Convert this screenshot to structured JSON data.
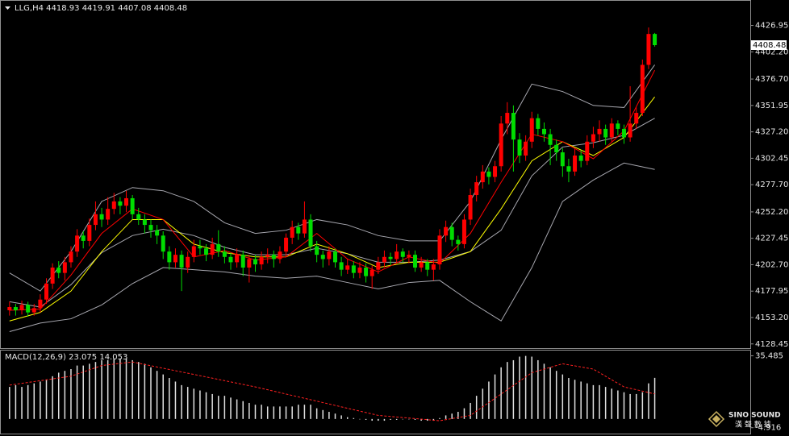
{
  "chart_data": [
    {
      "type": "candlestick",
      "title": "LLG,H4",
      "up_color": "#ff0000",
      "down_color": "#00dd00",
      "ylim": [
        4126,
        4447
      ],
      "yticks": [
        4426.95,
        {
          "value": 4402.2,
          "label": "4402.20"
        },
        {
          "value": 4376.7,
          "label": "4376.70"
        },
        4351.95,
        {
          "value": 4327.2,
          "label": "4327.20"
        },
        4302.45,
        {
          "value": 4277.7,
          "label": "4277.70"
        },
        {
          "value": 4252.2,
          "label": "4252.20"
        },
        4227.45,
        {
          "value": 4202.7,
          "label": "4202.70"
        },
        4177.95,
        {
          "value": 4153.2,
          "label": "4153.20"
        },
        4128.45
      ],
      "ohlc": [
        [
          4160,
          4168,
          4155,
          4163
        ],
        [
          4163,
          4166,
          4155,
          4160
        ],
        [
          4160,
          4169,
          4156,
          4165
        ],
        [
          4165,
          4168,
          4154,
          4158
        ],
        [
          4158,
          4166,
          4155,
          4162
        ],
        [
          4162,
          4175,
          4158,
          4170
        ],
        [
          4170,
          4190,
          4166,
          4185
        ],
        [
          4185,
          4204,
          4180,
          4200
        ],
        [
          4200,
          4206,
          4190,
          4195
        ],
        [
          4195,
          4210,
          4188,
          4205
        ],
        [
          4205,
          4220,
          4200,
          4215
        ],
        [
          4215,
          4236,
          4210,
          4230
        ],
        [
          4230,
          4234,
          4218,
          4225
        ],
        [
          4225,
          4246,
          4220,
          4240
        ],
        [
          4240,
          4262,
          4235,
          4250
        ],
        [
          4250,
          4256,
          4238,
          4245
        ],
        [
          4245,
          4266,
          4240,
          4255
        ],
        [
          4255,
          4270,
          4250,
          4262
        ],
        [
          4262,
          4266,
          4250,
          4258
        ],
        [
          4258,
          4272,
          4252,
          4265
        ],
        [
          4265,
          4268,
          4245,
          4250
        ],
        [
          4250,
          4256,
          4240,
          4245
        ],
        [
          4245,
          4250,
          4232,
          4240
        ],
        [
          4240,
          4245,
          4228,
          4235
        ],
        [
          4235,
          4240,
          4222,
          4230
        ],
        [
          4230,
          4234,
          4208,
          4215
        ],
        [
          4215,
          4220,
          4198,
          4205
        ],
        [
          4205,
          4218,
          4200,
          4212
        ],
        [
          4212,
          4216,
          4178,
          4200
        ],
        [
          4200,
          4215,
          4195,
          4210
        ],
        [
          4210,
          4226,
          4205,
          4220
        ],
        [
          4220,
          4226,
          4212,
          4218
        ],
        [
          4218,
          4222,
          4206,
          4212
        ],
        [
          4212,
          4228,
          4208,
          4222
        ],
        [
          4222,
          4235,
          4210,
          4215
        ],
        [
          4215,
          4220,
          4204,
          4210
        ],
        [
          4210,
          4214,
          4198,
          4205
        ],
        [
          4205,
          4218,
          4200,
          4212
        ],
        [
          4212,
          4216,
          4192,
          4200
        ],
        [
          4200,
          4212,
          4186,
          4208
        ],
        [
          4208,
          4212,
          4196,
          4203
        ],
        [
          4203,
          4215,
          4198,
          4210
        ],
        [
          4210,
          4218,
          4204,
          4212
        ],
        [
          4212,
          4216,
          4200,
          4208
        ],
        [
          4208,
          4220,
          4204,
          4215
        ],
        [
          4215,
          4232,
          4210,
          4228
        ],
        [
          4228,
          4244,
          4222,
          4238
        ],
        [
          4238,
          4242,
          4226,
          4232
        ],
        [
          4232,
          4262,
          4228,
          4245
        ],
        [
          4245,
          4250,
          4215,
          4220
        ],
        [
          4220,
          4225,
          4205,
          4212
        ],
        [
          4212,
          4216,
          4200,
          4208
        ],
        [
          4208,
          4220,
          4202,
          4215
        ],
        [
          4215,
          4218,
          4200,
          4205
        ],
        [
          4205,
          4210,
          4192,
          4198
        ],
        [
          4198,
          4208,
          4194,
          4202
        ],
        [
          4202,
          4206,
          4190,
          4195
        ],
        [
          4195,
          4205,
          4190,
          4200
        ],
        [
          4200,
          4204,
          4186,
          4192
        ],
        [
          4192,
          4202,
          4180,
          4198
        ],
        [
          4198,
          4210,
          4194,
          4205
        ],
        [
          4205,
          4216,
          4200,
          4210
        ],
        [
          4210,
          4214,
          4202,
          4208
        ],
        [
          4208,
          4222,
          4204,
          4215
        ],
        [
          4215,
          4218,
          4205,
          4210
        ],
        [
          4210,
          4216,
          4204,
          4212
        ],
        [
          4212,
          4216,
          4196,
          4200
        ],
        [
          4200,
          4210,
          4196,
          4205
        ],
        [
          4205,
          4208,
          4192,
          4198
        ],
        [
          4198,
          4208,
          4188,
          4203
        ],
        [
          4203,
          4236,
          4198,
          4230
        ],
        [
          4230,
          4244,
          4224,
          4238
        ],
        [
          4238,
          4242,
          4220,
          4226
        ],
        [
          4226,
          4230,
          4216,
          4222
        ],
        [
          4222,
          4250,
          4218,
          4245
        ],
        [
          4245,
          4274,
          4240,
          4268
        ],
        [
          4268,
          4286,
          4262,
          4280
        ],
        [
          4280,
          4296,
          4274,
          4290
        ],
        [
          4290,
          4294,
          4278,
          4285
        ],
        [
          4285,
          4300,
          4280,
          4295
        ],
        [
          4295,
          4342,
          4290,
          4335
        ],
        [
          4335,
          4355,
          4325,
          4345
        ],
        [
          4345,
          4352,
          4290,
          4320
        ],
        [
          4320,
          4326,
          4298,
          4305
        ],
        [
          4305,
          4324,
          4300,
          4318
        ],
        [
          4318,
          4346,
          4312,
          4340
        ],
        [
          4340,
          4344,
          4324,
          4330
        ],
        [
          4330,
          4336,
          4318,
          4325
        ],
        [
          4325,
          4330,
          4296,
          4315
        ],
        [
          4315,
          4320,
          4300,
          4308
        ],
        [
          4308,
          4312,
          4285,
          4295
        ],
        [
          4295,
          4302,
          4280,
          4290
        ],
        [
          4290,
          4312,
          4286,
          4305
        ],
        [
          4305,
          4310,
          4294,
          4300
        ],
        [
          4300,
          4324,
          4296,
          4318
        ],
        [
          4318,
          4332,
          4312,
          4325
        ],
        [
          4325,
          4338,
          4318,
          4330
        ],
        [
          4330,
          4334,
          4315,
          4322
        ],
        [
          4322,
          4340,
          4318,
          4335
        ],
        [
          4335,
          4338,
          4324,
          4330
        ],
        [
          4330,
          4334,
          4316,
          4322
        ],
        [
          4322,
          4370,
          4318,
          4335
        ],
        [
          4335,
          4350,
          4330,
          4345
        ],
        [
          4345,
          4395,
          4342,
          4390
        ],
        [
          4390,
          4425,
          4386,
          4418.93
        ],
        [
          4418.93,
          4419.91,
          4407.08,
          4408.48
        ]
      ],
      "overlay_x": [
        0,
        5,
        10,
        15,
        20,
        25,
        30,
        35,
        40,
        45,
        50,
        55,
        60,
        65,
        70,
        75,
        80,
        85,
        90,
        95,
        100,
        105
      ],
      "overlays": [
        {
          "color": "#a8a8b0",
          "values": [
            4195,
            4178,
            4215,
            4262,
            4275,
            4272,
            4262,
            4242,
            4232,
            4235,
            4245,
            4240,
            4230,
            4225,
            4225,
            4262,
            4320,
            4372,
            4365,
            4352,
            4350,
            4390
          ]
        },
        {
          "color": "#a8a8b0",
          "values": [
            4168,
            4163,
            4184,
            4214,
            4230,
            4236,
            4230,
            4219,
            4212,
            4212,
            4218,
            4213,
            4205,
            4205,
            4207,
            4215,
            4235,
            4286,
            4313,
            4317,
            4324,
            4340
          ]
        },
        {
          "color": "#a8a8b0",
          "values": [
            4140,
            4148,
            4152,
            4165,
            4185,
            4200,
            4198,
            4196,
            4192,
            4190,
            4192,
            4186,
            4180,
            4186,
            4188,
            4168,
            4150,
            4200,
            4262,
            4282,
            4298,
            4292
          ]
        },
        {
          "color": "#ffff00",
          "values": [
            4150,
            4158,
            4178,
            4215,
            4245,
            4245,
            4222,
            4214,
            4210,
            4210,
            4222,
            4213,
            4200,
            4205,
            4205,
            4215,
            4255,
            4300,
            4318,
            4305,
            4322,
            4360
          ]
        },
        {
          "color": "#ff0000",
          "values": [
            4160,
            4161,
            4193,
            4232,
            4255,
            4245,
            4210,
            4216,
            4207,
            4210,
            4232,
            4208,
            4196,
            4210,
            4204,
            4232,
            4280,
            4325,
            4318,
            4302,
            4328,
            4385
          ]
        }
      ]
    },
    {
      "type": "macd",
      "title": "MACD(12,26,9)",
      "color": "#e0e0e0",
      "ylim": [
        -5.5,
        37.5
      ],
      "yticks": [
        35.485,
        -4.916
      ],
      "values": [
        18,
        19,
        18,
        19,
        20,
        21,
        22,
        24,
        26,
        27,
        28,
        30,
        30,
        31,
        32,
        33,
        33,
        34,
        34,
        34,
        33,
        32,
        31,
        29,
        27,
        25,
        23,
        21,
        19,
        18,
        17,
        16,
        15,
        14,
        13,
        13,
        12,
        11,
        10,
        9,
        8,
        8,
        7,
        7,
        7,
        7,
        7,
        8,
        8,
        8,
        6,
        5,
        4,
        3,
        2,
        1,
        0.5,
        0,
        -0.5,
        -1,
        -1,
        -1,
        -0.5,
        -0.5,
        0,
        0,
        -0.5,
        -1,
        -1,
        -1,
        0.5,
        2,
        3,
        4,
        6,
        9,
        13,
        17,
        21,
        25,
        29,
        32,
        33,
        35,
        35.4,
        35,
        33,
        31,
        29,
        27,
        25,
        23,
        22,
        21,
        20,
        19,
        19,
        18,
        17,
        16,
        15,
        14,
        14,
        15,
        20,
        23.075
      ],
      "signal": {
        "color": "#ff2020",
        "dashed": true,
        "x": [
          0,
          10,
          15,
          20,
          30,
          40,
          50,
          60,
          70,
          75,
          80,
          85,
          90,
          95,
          100,
          105
        ],
        "values": [
          19,
          24,
          30,
          32,
          25,
          18,
          10,
          2,
          -1,
          2,
          14,
          26,
          31,
          28,
          18,
          14.053
        ]
      }
    }
  ],
  "watermark": {
    "name": "SINO SOUND",
    "cn": "漢 聲 數 據"
  }
}
